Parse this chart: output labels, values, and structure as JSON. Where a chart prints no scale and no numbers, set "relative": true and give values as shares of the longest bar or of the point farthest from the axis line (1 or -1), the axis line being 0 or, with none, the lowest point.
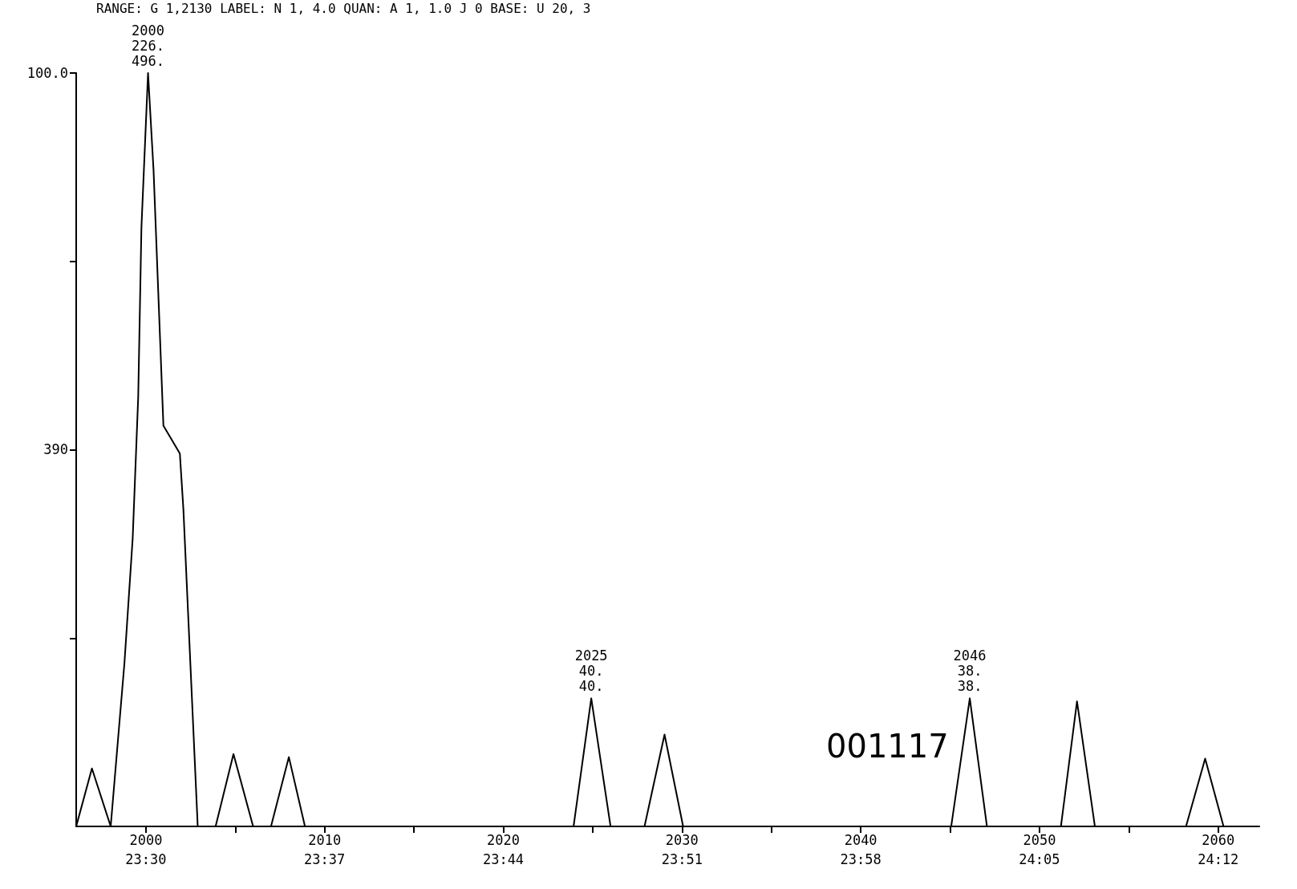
{
  "chart_data": {
    "type": "line",
    "relative": true,
    "x": [
      1996.1,
      1996.98,
      1998.03,
      1998.8,
      1999.26,
      1999.57,
      1999.75,
      2000.12,
      2000.43,
      2000.98,
      2001.9,
      2002.1,
      2002.9,
      2003.9,
      2004.9,
      2006,
      2007,
      2008,
      2008.9,
      2023.93,
      2024.92,
      2026.0,
      2027.9,
      2029.02,
      2030.06,
      2045.06,
      2046.1,
      2047.06,
      2051.2,
      2052.1,
      2053.1,
      2058.2,
      2059.27,
      2060.3,
      2062.3
    ],
    "series": [
      {
        "color": "#000000",
        "values": [
          0,
          0.077,
          0,
          0.217,
          0.382,
          0.57,
          0.795,
          1,
          0.87,
          0.532,
          0.495,
          0.42,
          0,
          0,
          0.096,
          0,
          0,
          0.092,
          0,
          0,
          0.17,
          0,
          0,
          0.122,
          0,
          0,
          0.17,
          0,
          0,
          0.166,
          0,
          0,
          0.09,
          0,
          0
        ]
      }
    ],
    "xlim": [
      1996.1,
      2062.3
    ],
    "xticks": [
      2000,
      {
        "value": 2005,
        "label": null
      },
      2010,
      {
        "value": 2015,
        "label": null
      },
      2020,
      {
        "value": 2025,
        "label": null
      },
      2030,
      {
        "value": 2035,
        "label": null
      },
      2040,
      {
        "value": 2045,
        "label": null
      },
      2050,
      {
        "value": 2055,
        "label": null
      },
      2060
    ],
    "grid": false,
    "marker": "none",
    "line_style": "solid",
    "annotations": [
      {
        "text": "2000\n226.\n496.",
        "x": 2000.12,
        "y": 1
      },
      {
        "text": "2025\n40.\n40.",
        "x": 2024.92,
        "y": 0.17
      },
      {
        "text": "2046\n38.\n38.",
        "x": 2046.1,
        "y": 0.17
      },
      "RANGE: G 1,2130 LABEL: N 1, 4.0 QUAN: A 1, 1.0 J 0 BASE: U 20, 3",
      "001117",
      "100.0",
      "390",
      "23:30",
      "23:37",
      "23:44",
      "23:51",
      "23:58",
      "24:05",
      "24:12"
    ]
  }
}
